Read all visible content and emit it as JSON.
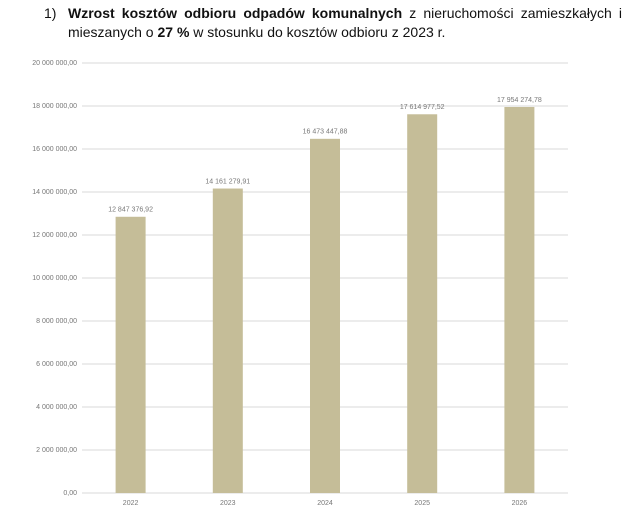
{
  "paragraph": {
    "number": "1)",
    "segments": [
      {
        "text": "Wzrost kosztów odbioru odpadów komunalnych",
        "bold": true
      },
      {
        "text": " z nieruchomości zamieszkałych i mieszanych o ",
        "bold": false
      },
      {
        "text": "27 %",
        "bold": true
      },
      {
        "text": " w stosunku do kosztów odbioru z 2023 r.",
        "bold": false
      }
    ]
  },
  "chart_data": {
    "type": "bar",
    "categories": [
      "2022",
      "2023",
      "2024",
      "2025",
      "2026"
    ],
    "values": [
      12847376.92,
      14161279.91,
      16473447.88,
      17614977.52,
      17954274.78
    ],
    "value_labels": [
      "12 847 376,92",
      "14 161 279,91",
      "16 473 447,88",
      "17 614 977,52",
      "17 954 274,78"
    ],
    "color": "#c5bd98",
    "ylim": [
      0,
      20000000
    ],
    "yticks": [
      {
        "value": 0,
        "label": "0,00"
      },
      {
        "value": 2000000,
        "label": "2 000 000,00"
      },
      {
        "value": 4000000,
        "label": "4 000 000,00"
      },
      {
        "value": 6000000,
        "label": "6 000 000,00"
      },
      {
        "value": 8000000,
        "label": "8 000 000,00"
      },
      {
        "value": 10000000,
        "label": "10 000 000,00"
      },
      {
        "value": 12000000,
        "label": "12 000 000,00"
      },
      {
        "value": 14000000,
        "label": "14 000 000,00"
      },
      {
        "value": 16000000,
        "label": "16 000 000,00"
      },
      {
        "value": 18000000,
        "label": "18 000 000,00"
      },
      {
        "value": 20000000,
        "label": "20 000 000,00"
      }
    ],
    "grid": true
  }
}
